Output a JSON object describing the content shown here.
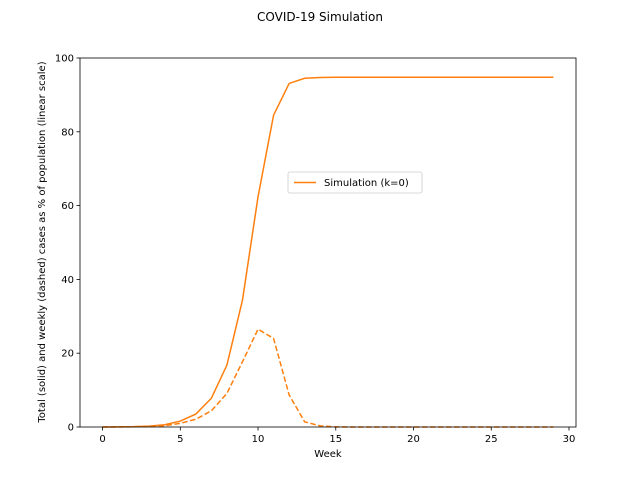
{
  "chart_data": {
    "type": "line",
    "title": "COVID-19 Simulation",
    "xlabel": "Week",
    "ylabel": "Total (solid) and weekly (dashed) cases as % of population (linear scale)",
    "xlim": [
      -1.45,
      30.45
    ],
    "ylim": [
      0,
      100
    ],
    "xticks": [
      0,
      5,
      10,
      15,
      20,
      25,
      30
    ],
    "yticks": [
      0,
      20,
      40,
      60,
      80,
      100
    ],
    "grid": false,
    "legend": {
      "entries": [
        "Simulation (k=0)"
      ],
      "placement": "center-right"
    },
    "color": "#ff7f0e",
    "x": [
      0,
      1,
      2,
      3,
      4,
      5,
      6,
      7,
      8,
      9,
      10,
      11,
      12,
      13,
      14,
      15,
      16,
      17,
      18,
      19,
      20,
      21,
      22,
      23,
      24,
      25,
      26,
      27,
      28,
      29
    ],
    "series": [
      {
        "name": "Simulation (k=0)",
        "style": "solid",
        "values": [
          0,
          0.05,
          0.1,
          0.25,
          0.6,
          1.6,
          3.5,
          7.8,
          16.8,
          34.4,
          62.4,
          84.5,
          93.1,
          94.5,
          94.7,
          94.8,
          94.8,
          94.8,
          94.8,
          94.8,
          94.8,
          94.8,
          94.8,
          94.8,
          94.8,
          94.8,
          94.8,
          94.8,
          94.8,
          94.8
        ]
      },
      {
        "name": "weekly",
        "style": "dashed",
        "values": [
          0,
          0.03,
          0.06,
          0.15,
          0.35,
          1.0,
          2.1,
          4.4,
          9.1,
          17.7,
          26.5,
          24.0,
          8.7,
          1.4,
          0.3,
          0.05,
          0,
          0,
          0,
          0,
          0,
          0,
          0,
          0,
          0,
          0,
          0,
          0,
          0,
          0
        ]
      }
    ]
  }
}
